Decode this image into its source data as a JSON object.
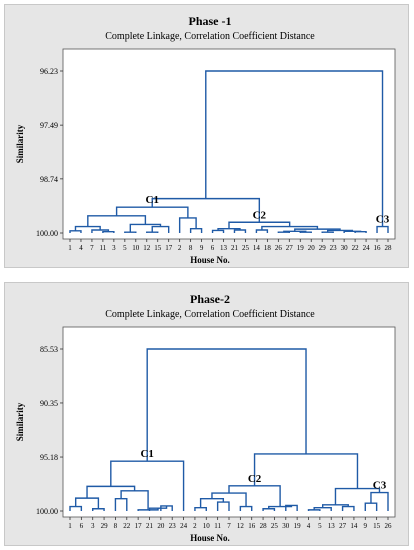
{
  "colors": {
    "panel_bg": "#e6e6e6",
    "plot_bg": "#ffffff",
    "dendrogram_line": "#1f5aa6"
  },
  "chart_data": [
    {
      "type": "dendrogram",
      "title": "Phase -1",
      "subtitle": "Complete Linkage, Correlation Coefficient Distance",
      "xlabel": "House No.",
      "ylabel": "Similarity",
      "y_ticks": [
        "96.23",
        "97.49",
        "98.74",
        "100.00"
      ],
      "ylim": [
        96.23,
        100.0
      ],
      "leaves": [
        "1",
        "4",
        "7",
        "11",
        "3",
        "5",
        "10",
        "12",
        "15",
        "17",
        "2",
        "8",
        "9",
        "6",
        "13",
        "21",
        "25",
        "14",
        "18",
        "26",
        "27",
        "19",
        "20",
        "29",
        "23",
        "30",
        "22",
        "24",
        "16",
        "28"
      ],
      "merges": [
        {
          "a": "L1",
          "b": "L4",
          "h": 99.95
        },
        {
          "a": "L11",
          "b": "L3",
          "h": 99.97
        },
        {
          "a": "L5",
          "b": "L10",
          "h": 99.98
        },
        {
          "a": "L12",
          "b": "L15",
          "h": 99.98
        },
        {
          "a": "L26",
          "b": "L27",
          "h": 99.98
        },
        {
          "a": "L19",
          "b": "L20",
          "h": 99.98
        },
        {
          "a": "L29",
          "b": "L23",
          "h": 99.98
        },
        {
          "a": "L22",
          "b": "L24",
          "h": 99.97
        },
        {
          "a": "L21",
          "b": "L25",
          "h": 99.93
        },
        {
          "a": "L6",
          "b": "L13",
          "h": 99.94
        },
        {
          "a": "L14",
          "b": "L18",
          "h": 99.93
        },
        {
          "a": "L30",
          "b": "m8",
          "h": 99.96
        },
        {
          "a": "m4",
          "b": "L17",
          "h": 99.85
        },
        {
          "a": "L7",
          "b": "m2",
          "h": 99.93
        },
        {
          "a": "L8",
          "b": "L9",
          "h": 99.9
        },
        {
          "a": "m1",
          "b": "m14",
          "h": 99.85
        },
        {
          "a": "m5",
          "b": "m6",
          "h": 99.96
        },
        {
          "a": "m7",
          "b": "m12",
          "h": 99.94
        },
        {
          "a": "m3",
          "b": "m13",
          "h": 99.8
        },
        {
          "a": "m16",
          "b": "m19",
          "h": 99.6
        },
        {
          "a": "L2",
          "b": "m15",
          "h": 99.65
        },
        {
          "a": "m10",
          "b": "m9",
          "h": 99.9
        },
        {
          "a": "m17",
          "b": "m18",
          "h": 99.91
        },
        {
          "a": "m11",
          "b": "m23",
          "h": 99.85
        },
        {
          "a": "m22",
          "b": "m24",
          "h": 99.75
        },
        {
          "a": "L16",
          "b": "L28",
          "h": 99.85
        },
        {
          "a": "m20",
          "b": "m21",
          "h": 99.4
        },
        {
          "a": "m27",
          "b": "m25",
          "h": 99.2
        },
        {
          "a": "m28",
          "b": "m26",
          "h": 96.23
        }
      ],
      "annotations": [
        {
          "label": "C1",
          "anchor": "m27"
        },
        {
          "label": "C2",
          "anchor": "m25"
        },
        {
          "label": "C3",
          "anchor": "m26"
        }
      ]
    },
    {
      "type": "dendrogram",
      "title": "Phase-2",
      "subtitle": "Complete Linkage, Correlation Coefficient Distance",
      "xlabel": "House No.",
      "ylabel": "Similarity",
      "y_ticks": [
        "85.53",
        "90.35",
        "95.18",
        "100.00"
      ],
      "ylim": [
        85.53,
        100.0
      ],
      "leaves": [
        "1",
        "6",
        "3",
        "29",
        "8",
        "22",
        "17",
        "21",
        "20",
        "23",
        "24",
        "2",
        "10",
        "11",
        "7",
        "12",
        "16",
        "28",
        "25",
        "30",
        "19",
        "4",
        "5",
        "13",
        "27",
        "14",
        "9",
        "15",
        "26"
      ],
      "merges": [
        {
          "a": "L1",
          "b": "L6",
          "h": 99.6
        },
        {
          "a": "L3",
          "b": "L29",
          "h": 99.8
        },
        {
          "a": "L8",
          "b": "L22",
          "h": 98.9
        },
        {
          "a": "L20",
          "b": "L23",
          "h": 99.55
        },
        {
          "a": "L21",
          "b": "m4",
          "h": 99.75
        },
        {
          "a": "L17",
          "b": "m5",
          "h": 99.9
        },
        {
          "a": "m1",
          "b": "m2",
          "h": 98.85
        },
        {
          "a": "m3",
          "b": "m6",
          "h": 98.2
        },
        {
          "a": "m7",
          "b": "m8",
          "h": 97.8
        },
        {
          "a": "L24",
          "b": "m9",
          "h": 95.55
        },
        {
          "a": "L2",
          "b": "L10",
          "h": 99.7
        },
        {
          "a": "L11",
          "b": "L7",
          "h": 99.2
        },
        {
          "a": "m11",
          "b": "m12",
          "h": 98.9
        },
        {
          "a": "L12",
          "b": "L16",
          "h": 99.6
        },
        {
          "a": "m13",
          "b": "m14",
          "h": 98.4
        },
        {
          "a": "L28",
          "b": "L25",
          "h": 99.8
        },
        {
          "a": "L30",
          "b": "L19",
          "h": 99.5
        },
        {
          "a": "m16",
          "b": "m17",
          "h": 99.6
        },
        {
          "a": "m15",
          "b": "m18",
          "h": 97.75
        },
        {
          "a": "L4",
          "b": "L5",
          "h": 99.9
        },
        {
          "a": "m20",
          "b": "L13",
          "h": 99.7
        },
        {
          "a": "L27",
          "b": "L14",
          "h": 99.6
        },
        {
          "a": "m21",
          "b": "m22",
          "h": 99.45
        },
        {
          "a": "L9",
          "b": "L15",
          "h": 99.3
        },
        {
          "a": "m24",
          "b": "L26",
          "h": 98.35
        },
        {
          "a": "m23",
          "b": "m25",
          "h": 98.0
        },
        {
          "a": "m19",
          "b": "m26",
          "h": 94.9
        },
        {
          "a": "m10",
          "b": "m27",
          "h": 85.53
        }
      ],
      "annotations": [
        {
          "label": "C1",
          "anchor": "m10"
        },
        {
          "label": "C2",
          "anchor": "m19"
        },
        {
          "label": "C3",
          "anchor": "m25"
        }
      ]
    }
  ]
}
